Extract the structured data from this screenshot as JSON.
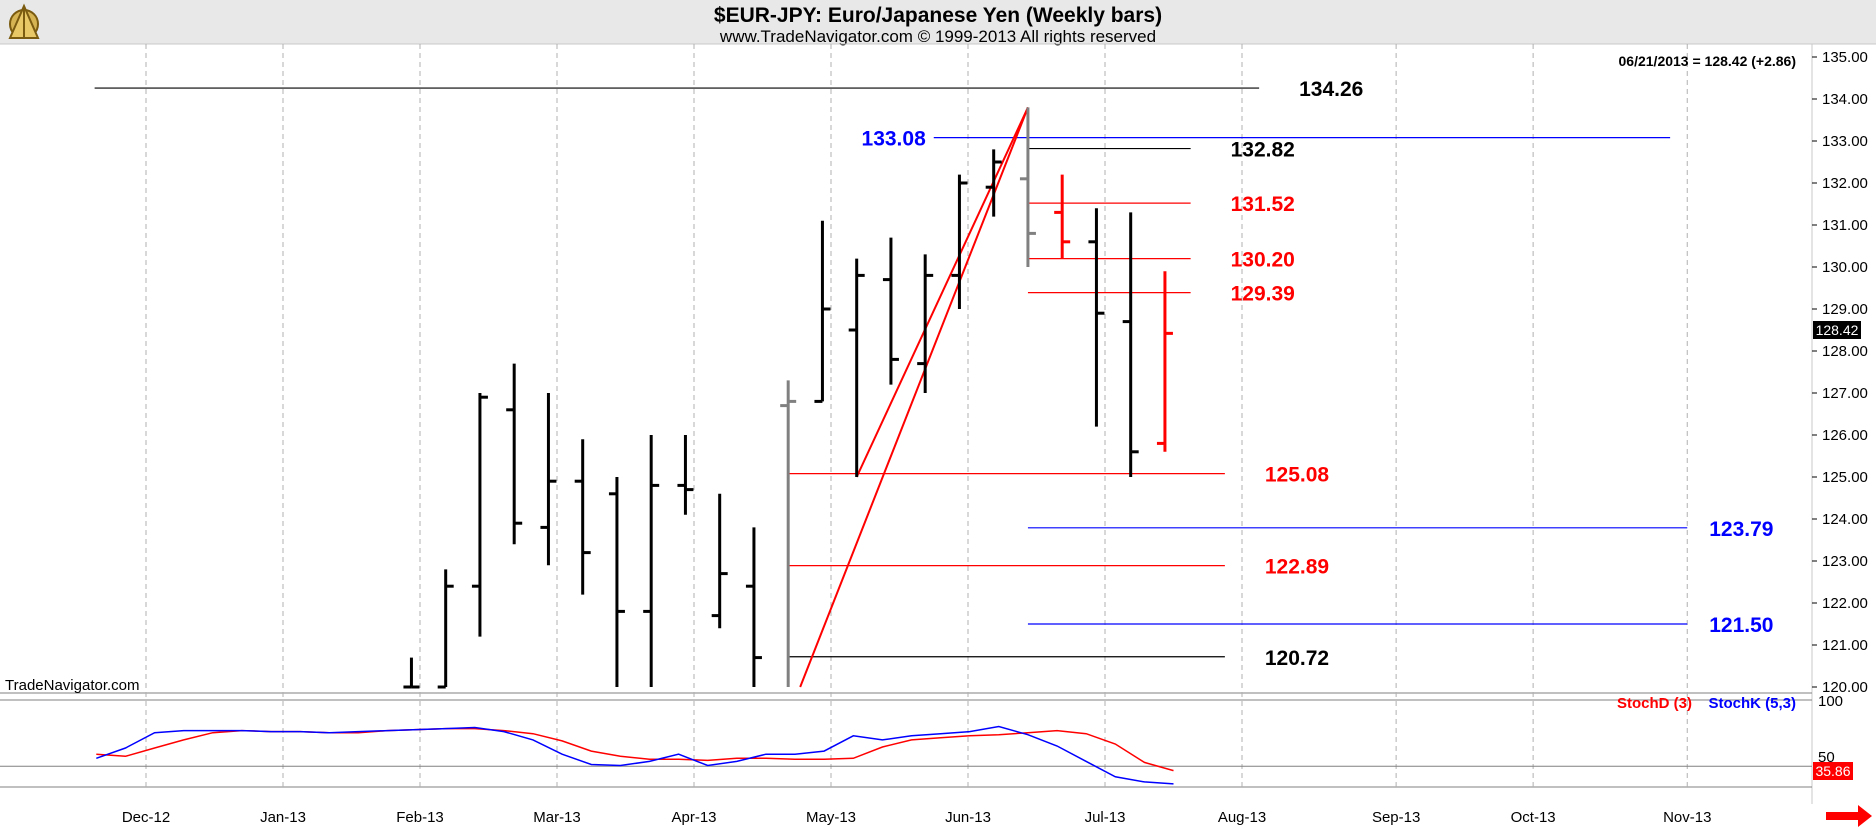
{
  "header": {
    "title": "$EUR-JPY:  Euro/Japanese Yen  (Weekly bars)",
    "subtitle": "www.TradeNavigator.com © 1999-2013 All rights reserved",
    "logo_icon": "sextant-logo-icon"
  },
  "chart_data": {
    "type": "ohlc",
    "last_quote": "06/21/2013 = 128.42 (+2.86)",
    "last_price_label": "128.42",
    "watermark": "TradeNavigator.com",
    "price_axis": {
      "ylim": [
        119.8,
        135.2
      ],
      "ticks": [
        "135.00",
        "134.00",
        "133.00",
        "132.00",
        "131.00",
        "130.00",
        "129.00",
        "128.00",
        "127.00",
        "126.00",
        "125.00",
        "124.00",
        "123.00",
        "122.00",
        "121.00",
        "120.00"
      ],
      "grid": false
    },
    "x_axis": {
      "months": [
        "Dec-12",
        "Jan-13",
        "Feb-13",
        "Mar-13",
        "Apr-13",
        "May-13",
        "Jun-13",
        "Jul-13",
        "Aug-13",
        "Sep-13",
        "Oct-13",
        "Nov-13"
      ],
      "month_week_index": [
        1.5,
        5.5,
        9.5,
        13.5,
        17.5,
        21.5,
        25.5,
        29.5,
        33.5,
        38.0,
        42.0,
        46.5
      ],
      "grid": "vertical-dashed"
    },
    "bars": [
      {
        "w": 9.25,
        "o": 120.0,
        "h": 120.7,
        "l": 120.0,
        "c": 120.0,
        "color": "#000000"
      },
      {
        "w": 10.25,
        "o": 120.0,
        "h": 122.8,
        "l": 120.0,
        "c": 122.4,
        "color": "#000000"
      },
      {
        "w": 11.25,
        "o": 122.4,
        "h": 127.0,
        "l": 121.2,
        "c": 126.9,
        "color": "#000000"
      },
      {
        "w": 12.25,
        "o": 126.6,
        "h": 127.7,
        "l": 123.4,
        "c": 123.9,
        "color": "#000000"
      },
      {
        "w": 13.25,
        "o": 123.8,
        "h": 127.0,
        "l": 122.9,
        "c": 124.9,
        "color": "#000000"
      },
      {
        "w": 14.25,
        "o": 124.9,
        "h": 125.9,
        "l": 122.2,
        "c": 123.2,
        "color": "#000000"
      },
      {
        "w": 15.25,
        "o": 124.6,
        "h": 125.0,
        "l": 120.0,
        "c": 121.8,
        "color": "#000000"
      },
      {
        "w": 16.25,
        "o": 121.8,
        "h": 126.0,
        "l": 120.0,
        "c": 124.8,
        "color": "#000000"
      },
      {
        "w": 17.25,
        "o": 124.8,
        "h": 126.0,
        "l": 124.1,
        "c": 124.7,
        "color": "#000000"
      },
      {
        "w": 18.25,
        "o": 121.7,
        "h": 124.6,
        "l": 121.4,
        "c": 122.7,
        "color": "#000000"
      },
      {
        "w": 19.25,
        "o": 122.4,
        "h": 123.8,
        "l": 120.0,
        "c": 120.7,
        "color": "#000000"
      },
      {
        "w": 20.25,
        "o": 126.7,
        "h": 127.3,
        "l": 120.0,
        "c": 126.8,
        "color": "#808080"
      },
      {
        "w": 21.25,
        "o": 126.8,
        "h": 131.1,
        "l": 126.8,
        "c": 129.0,
        "color": "#000000"
      },
      {
        "w": 22.25,
        "o": 128.5,
        "h": 130.2,
        "l": 125.0,
        "c": 129.8,
        "color": "#000000"
      },
      {
        "w": 23.25,
        "o": 129.7,
        "h": 130.7,
        "l": 127.2,
        "c": 127.8,
        "color": "#000000"
      },
      {
        "w": 24.25,
        "o": 127.7,
        "h": 130.3,
        "l": 127.0,
        "c": 129.8,
        "color": "#000000"
      },
      {
        "w": 25.25,
        "o": 129.8,
        "h": 132.2,
        "l": 129.0,
        "c": 132.0,
        "color": "#000000"
      },
      {
        "w": 26.25,
        "o": 131.9,
        "h": 132.8,
        "l": 131.2,
        "c": 132.5,
        "color": "#000000"
      },
      {
        "w": 27.25,
        "o": 132.1,
        "h": 133.8,
        "l": 130.0,
        "c": 130.8,
        "color": "#808080"
      },
      {
        "w": 28.25,
        "o": 131.3,
        "h": 132.2,
        "l": 130.2,
        "c": 130.6,
        "color": "#ff0000"
      },
      {
        "w": 29.25,
        "o": 130.6,
        "h": 131.4,
        "l": 126.2,
        "c": 128.9,
        "color": "#000000"
      },
      {
        "w": 30.25,
        "o": 128.7,
        "h": 131.3,
        "l": 125.0,
        "c": 125.6,
        "color": "#000000"
      },
      {
        "w": 31.25,
        "o": 125.8,
        "h": 129.9,
        "l": 125.6,
        "c": 128.42,
        "color": "#ff0000"
      }
    ],
    "levels": [
      {
        "label": "134.26",
        "value": 134.26,
        "color": "#000000",
        "from": 0,
        "to": 34.0
      },
      {
        "label": "133.08",
        "value": 133.08,
        "color": "#0000ff",
        "from": 24.5,
        "to": 46.0
      },
      {
        "label": "132.82",
        "value": 132.82,
        "color": "#000000",
        "from": 27.25,
        "to": 32.0
      },
      {
        "label": "131.52",
        "value": 131.52,
        "color": "#ff0000",
        "from": 27.25,
        "to": 32.0
      },
      {
        "label": "130.20",
        "value": 130.2,
        "color": "#ff0000",
        "from": 27.25,
        "to": 32.0
      },
      {
        "label": "129.39",
        "value": 129.39,
        "color": "#ff0000",
        "from": 27.25,
        "to": 32.0
      },
      {
        "label": "125.08",
        "value": 125.08,
        "color": "#ff0000",
        "from": 20.25,
        "to": 33.0
      },
      {
        "label": "123.79",
        "value": 123.79,
        "color": "#0000ff",
        "from": 27.25,
        "to": 46.5
      },
      {
        "label": "122.89",
        "value": 122.89,
        "color": "#ff0000",
        "from": 20.25,
        "to": 33.0
      },
      {
        "label": "121.50",
        "value": 121.5,
        "color": "#0000ff",
        "from": 27.25,
        "to": 46.5
      },
      {
        "label": "120.72",
        "value": 120.72,
        "color": "#000000",
        "from": 20.25,
        "to": 33.0
      }
    ],
    "trendlines": [
      {
        "from": [
          22.25,
          125.0
        ],
        "to": [
          27.25,
          133.8
        ],
        "color": "#ff0000"
      },
      {
        "from": [
          20.6,
          120.0
        ],
        "to": [
          27.25,
          133.8
        ],
        "color": "#ff0000"
      }
    ],
    "stochastic": {
      "legend": [
        "StochD (3)",
        "StochK (5,3)"
      ],
      "top_label": "100",
      "mid_label": "50",
      "last_d": "35.86",
      "stoch_d": [
        52,
        50,
        58,
        66,
        73,
        75,
        74,
        74,
        73,
        73,
        75,
        76,
        77,
        77,
        75,
        72,
        65,
        55,
        50,
        47,
        47,
        46,
        48,
        48,
        47,
        47,
        48,
        59,
        66,
        68,
        70,
        71,
        73,
        75,
        72,
        62,
        44,
        36
      ],
      "stoch_k": [
        48,
        58,
        73,
        75,
        75,
        75,
        74,
        74,
        73,
        74,
        75,
        76,
        77,
        78,
        74,
        66,
        52,
        42,
        41,
        45,
        52,
        41,
        45,
        52,
        52,
        55,
        70,
        66,
        70,
        72,
        74,
        79,
        71,
        60,
        45,
        30,
        25,
        23
      ]
    }
  },
  "colors": {
    "accent_red": "#ff0000",
    "accent_blue": "#0000ff",
    "header_bg": "#e8e8e8",
    "bar_black": "#000000",
    "bar_gray": "#808080"
  }
}
